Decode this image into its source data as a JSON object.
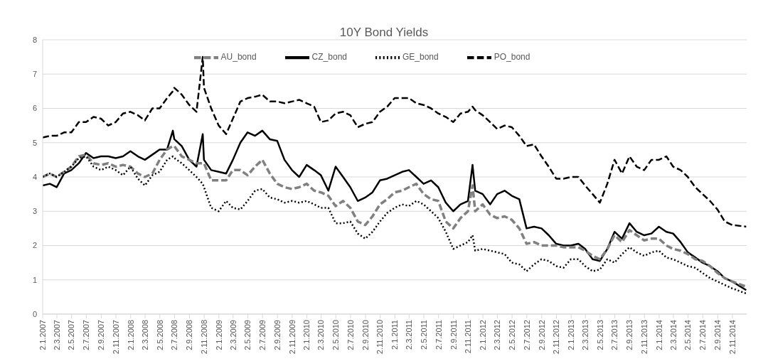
{
  "chart_data": {
    "type": "line",
    "title": "10Y Bond Yields",
    "x": [
      "2007-01-02",
      "2007-02-01",
      "2007-03-01",
      "2007-04-01",
      "2007-05-01",
      "2007-06-01",
      "2007-07-01",
      "2007-08-01",
      "2007-09-01",
      "2007-10-01",
      "2007-11-01",
      "2007-12-01",
      "2008-01-01",
      "2008-02-01",
      "2008-03-01",
      "2008-04-01",
      "2008-05-01",
      "2008-06-01",
      "2008-06-25",
      "2008-07-01",
      "2008-08-01",
      "2008-09-01",
      "2008-10-01",
      "2008-10-27",
      "2008-11-01",
      "2008-12-01",
      "2009-01-01",
      "2009-02-01",
      "2009-03-01",
      "2009-04-01",
      "2009-05-01",
      "2009-06-01",
      "2009-07-01",
      "2009-08-01",
      "2009-09-01",
      "2009-10-01",
      "2009-11-01",
      "2009-12-01",
      "2010-01-01",
      "2010-02-01",
      "2010-03-01",
      "2010-04-01",
      "2010-05-01",
      "2010-06-01",
      "2010-07-01",
      "2010-08-01",
      "2010-09-01",
      "2010-10-01",
      "2010-11-01",
      "2010-12-01",
      "2011-01-01",
      "2011-02-01",
      "2011-03-01",
      "2011-04-01",
      "2011-05-01",
      "2011-06-01",
      "2011-07-01",
      "2011-08-01",
      "2011-09-01",
      "2011-10-01",
      "2011-11-01",
      "2011-11-20",
      "2011-12-01",
      "2012-01-01",
      "2012-02-01",
      "2012-03-01",
      "2012-04-01",
      "2012-05-01",
      "2012-06-01",
      "2012-07-01",
      "2012-08-01",
      "2012-09-01",
      "2012-10-01",
      "2012-11-01",
      "2012-12-01",
      "2013-01-01",
      "2013-02-01",
      "2013-03-01",
      "2013-04-01",
      "2013-05-01",
      "2013-06-01",
      "2013-07-01",
      "2013-08-01",
      "2013-09-01",
      "2013-10-01",
      "2013-11-01",
      "2013-12-01",
      "2014-01-01",
      "2014-02-01",
      "2014-03-01",
      "2014-04-01",
      "2014-05-01",
      "2014-06-01",
      "2014-07-01",
      "2014-08-01",
      "2014-09-01",
      "2014-10-01",
      "2014-11-01",
      "2014-12-29"
    ],
    "series": [
      {
        "name": "CZ_bond",
        "color": "#000000",
        "line_style": "solid",
        "values": [
          3.75,
          3.8,
          3.7,
          4.1,
          4.2,
          4.4,
          4.7,
          4.55,
          4.6,
          4.6,
          4.55,
          4.6,
          4.75,
          4.6,
          4.5,
          4.65,
          4.8,
          4.8,
          5.35,
          5.1,
          4.9,
          4.5,
          4.3,
          5.25,
          4.5,
          4.2,
          4.15,
          4.1,
          4.5,
          5.0,
          5.3,
          5.2,
          5.35,
          5.1,
          5.05,
          4.5,
          4.2,
          4.0,
          4.35,
          4.2,
          4.05,
          3.6,
          4.3,
          4.0,
          3.7,
          3.3,
          3.4,
          3.55,
          3.9,
          3.95,
          4.05,
          4.15,
          4.2,
          4.0,
          3.8,
          3.9,
          3.7,
          3.25,
          3.0,
          3.2,
          3.3,
          4.35,
          3.6,
          3.5,
          3.2,
          3.5,
          3.6,
          3.45,
          3.35,
          2.5,
          2.55,
          2.5,
          2.3,
          2.05,
          2.0,
          2.0,
          2.05,
          1.9,
          1.6,
          1.55,
          1.9,
          2.4,
          2.2,
          2.65,
          2.4,
          2.3,
          2.35,
          2.55,
          2.4,
          2.35,
          2.1,
          1.8,
          1.65,
          1.5,
          1.4,
          1.25,
          1.05,
          0.95,
          0.7
        ]
      },
      {
        "name": "PO_bond",
        "color": "#000000",
        "line_style": "dashed",
        "values": [
          5.15,
          5.2,
          5.2,
          5.3,
          5.3,
          5.6,
          5.6,
          5.75,
          5.7,
          5.5,
          5.6,
          5.85,
          5.9,
          5.8,
          5.65,
          6.0,
          6.0,
          6.3,
          6.5,
          6.6,
          6.4,
          6.1,
          5.9,
          7.5,
          6.6,
          6.0,
          5.5,
          5.25,
          5.7,
          6.2,
          6.3,
          6.34,
          6.4,
          6.2,
          6.2,
          6.15,
          6.2,
          6.25,
          6.15,
          6.05,
          5.6,
          5.65,
          5.85,
          5.9,
          5.8,
          5.45,
          5.55,
          5.6,
          5.9,
          6.05,
          6.3,
          6.3,
          6.3,
          6.15,
          6.1,
          6.0,
          5.85,
          5.75,
          5.6,
          5.85,
          5.9,
          6.05,
          5.95,
          5.8,
          5.6,
          5.4,
          5.5,
          5.45,
          5.2,
          4.9,
          4.95,
          4.6,
          4.3,
          3.95,
          3.95,
          4.0,
          4.0,
          3.75,
          3.5,
          3.25,
          3.8,
          4.5,
          4.1,
          4.6,
          4.3,
          4.2,
          4.5,
          4.5,
          4.6,
          4.3,
          4.2,
          4.0,
          3.7,
          3.5,
          3.3,
          3.05,
          2.7,
          2.6,
          2.55
        ]
      },
      {
        "name": "AU_bond",
        "color": "#808080",
        "line_style": "dashed",
        "values": [
          4.0,
          4.1,
          4.0,
          4.15,
          4.3,
          4.6,
          4.65,
          4.4,
          4.35,
          4.4,
          4.3,
          4.35,
          4.3,
          4.1,
          4.0,
          4.1,
          4.5,
          4.8,
          4.9,
          4.9,
          4.6,
          4.5,
          4.4,
          4.4,
          4.4,
          3.9,
          3.9,
          3.9,
          4.2,
          4.2,
          4.05,
          4.3,
          4.5,
          4.1,
          3.8,
          3.7,
          3.65,
          3.7,
          3.8,
          3.6,
          3.55,
          3.45,
          3.15,
          3.3,
          3.1,
          2.7,
          2.6,
          2.85,
          3.2,
          3.35,
          3.55,
          3.6,
          3.7,
          3.8,
          3.5,
          3.35,
          3.3,
          2.7,
          2.5,
          2.8,
          3.0,
          3.75,
          3.0,
          3.2,
          2.9,
          2.8,
          2.85,
          2.75,
          2.5,
          2.05,
          2.1,
          2.0,
          2.0,
          2.0,
          1.95,
          1.95,
          1.95,
          1.85,
          1.7,
          1.6,
          1.9,
          2.3,
          2.1,
          2.45,
          2.3,
          2.15,
          2.2,
          2.2,
          2.0,
          1.9,
          1.85,
          1.75,
          1.6,
          1.55,
          1.4,
          1.2,
          1.05,
          0.95,
          0.8
        ]
      },
      {
        "name": "GE_bond",
        "color": "#000000",
        "line_style": "dotted",
        "values": [
          4.0,
          4.1,
          4.0,
          4.15,
          4.3,
          4.55,
          4.6,
          4.3,
          4.2,
          4.3,
          4.2,
          4.05,
          4.3,
          3.95,
          3.75,
          4.05,
          4.15,
          4.5,
          4.6,
          4.55,
          4.4,
          4.2,
          4.0,
          3.8,
          3.7,
          3.1,
          3.0,
          3.3,
          3.1,
          3.05,
          3.3,
          3.6,
          3.65,
          3.4,
          3.35,
          3.25,
          3.3,
          3.25,
          3.3,
          3.2,
          3.1,
          3.1,
          2.65,
          2.65,
          2.7,
          2.35,
          2.2,
          2.4,
          2.7,
          2.95,
          3.1,
          3.2,
          3.15,
          3.3,
          3.2,
          3.0,
          2.8,
          2.4,
          1.9,
          2.0,
          2.1,
          2.3,
          1.85,
          1.9,
          1.85,
          1.8,
          1.75,
          1.5,
          1.45,
          1.25,
          1.45,
          1.6,
          1.55,
          1.4,
          1.35,
          1.6,
          1.6,
          1.4,
          1.25,
          1.3,
          1.6,
          1.5,
          1.75,
          1.95,
          1.8,
          1.7,
          1.8,
          1.85,
          1.65,
          1.6,
          1.5,
          1.4,
          1.35,
          1.2,
          1.05,
          0.95,
          0.85,
          0.75,
          0.6
        ]
      }
    ],
    "xlim": [
      "2007-01-02",
      "2014-12-31"
    ],
    "xticks": [
      {
        "value": "2007-01-02",
        "label": "2.1.2007"
      },
      {
        "value": "2007-03-02",
        "label": "2.3.2007"
      },
      {
        "value": "2007-05-02",
        "label": "2.5.2007"
      },
      {
        "value": "2007-07-02",
        "label": "2.7.2007"
      },
      {
        "value": "2007-09-02",
        "label": "2.9.2007"
      },
      {
        "value": "2007-11-02",
        "label": "2.11.2007"
      },
      {
        "value": "2008-01-02",
        "label": "2.1.2008"
      },
      {
        "value": "2008-03-02",
        "label": "2.3.2008"
      },
      {
        "value": "2008-05-02",
        "label": "2.5.2008"
      },
      {
        "value": "2008-07-02",
        "label": "2.7.2008"
      },
      {
        "value": "2008-09-02",
        "label": "2.9.2008"
      },
      {
        "value": "2008-11-02",
        "label": "2.11.2008"
      },
      {
        "value": "2009-01-02",
        "label": "2.1.2009"
      },
      {
        "value": "2009-03-02",
        "label": "2.3.2009"
      },
      {
        "value": "2009-05-02",
        "label": "2.5.2009"
      },
      {
        "value": "2009-07-02",
        "label": "2.7.2009"
      },
      {
        "value": "2009-09-02",
        "label": "2.9.2009"
      },
      {
        "value": "2009-11-02",
        "label": "2.11.2009"
      },
      {
        "value": "2010-01-02",
        "label": "2.1.2010"
      },
      {
        "value": "2010-03-02",
        "label": "2.3.2010"
      },
      {
        "value": "2010-05-02",
        "label": "2.5.2010"
      },
      {
        "value": "2010-07-02",
        "label": "2.7.2010"
      },
      {
        "value": "2010-09-02",
        "label": "2.9.2010"
      },
      {
        "value": "2010-11-02",
        "label": "2.11.2010"
      },
      {
        "value": "2011-01-02",
        "label": "2.1.2011"
      },
      {
        "value": "2011-03-02",
        "label": "2.3.2011"
      },
      {
        "value": "2011-05-02",
        "label": "2.5.2011"
      },
      {
        "value": "2011-07-02",
        "label": "2.7.2011"
      },
      {
        "value": "2011-09-02",
        "label": "2.9.2011"
      },
      {
        "value": "2011-11-02",
        "label": "2.11.2011"
      },
      {
        "value": "2012-01-02",
        "label": "2.1.2012"
      },
      {
        "value": "2012-03-02",
        "label": "2.3.2012"
      },
      {
        "value": "2012-05-02",
        "label": "2.5.2012"
      },
      {
        "value": "2012-07-02",
        "label": "2.7.2012"
      },
      {
        "value": "2012-09-02",
        "label": "2.9.2012"
      },
      {
        "value": "2012-11-02",
        "label": "2.11.2012"
      },
      {
        "value": "2013-01-02",
        "label": "2.1.2013"
      },
      {
        "value": "2013-03-02",
        "label": "2.3.2013"
      },
      {
        "value": "2013-05-02",
        "label": "2.5.2013"
      },
      {
        "value": "2013-07-02",
        "label": "2.7.2013"
      },
      {
        "value": "2013-09-02",
        "label": "2.9.2013"
      },
      {
        "value": "2013-11-02",
        "label": "2.11.2013"
      },
      {
        "value": "2014-01-02",
        "label": "2.1.2014"
      },
      {
        "value": "2014-03-02",
        "label": "2.3.2014"
      },
      {
        "value": "2014-05-02",
        "label": "2.5.2014"
      },
      {
        "value": "2014-07-02",
        "label": "2.7.2014"
      },
      {
        "value": "2014-09-02",
        "label": "2.9.2014"
      },
      {
        "value": "2014-11-02",
        "label": "2.11.2014"
      }
    ],
    "ylim": [
      0,
      8
    ],
    "yticks": [
      0,
      1,
      2,
      3,
      4,
      5,
      6,
      7,
      8
    ],
    "grid": "y",
    "legend": "top",
    "marker": "none"
  }
}
